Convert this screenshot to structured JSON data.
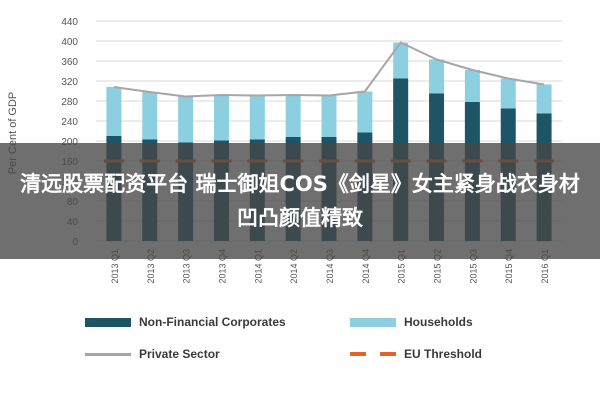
{
  "overlay": {
    "caption": "清远股票配资平台 瑞士御姐COS《剑星》女主紧身战衣身材凹凸颜值精致"
  },
  "chart_data": {
    "type": "bar",
    "ylabel": "Per Cent of GDP",
    "ylim": [
      0,
      440
    ],
    "yticks": [
      0,
      40,
      80,
      120,
      160,
      200,
      240,
      280,
      320,
      360,
      400,
      440
    ],
    "grid": true,
    "legend_position": "bottom",
    "categories": [
      "2013 Q1",
      "2013 Q2",
      "2013 Q3",
      "2013 Q4",
      "2014 Q1",
      "2014 Q2",
      "2014 Q3",
      "2014 Q4",
      "2015 Q1",
      "2015 Q2",
      "2015 Q3",
      "2015 Q4",
      "2016 Q1"
    ],
    "series": [
      {
        "name": "Non-Financial Corporates",
        "kind": "bar",
        "color": "#1e5566",
        "values": [
          210,
          203,
          197,
          201,
          203,
          208,
          208,
          217,
          325,
          295,
          278,
          265,
          255
        ]
      },
      {
        "name": "Households",
        "kind": "bar",
        "color": "#8ccfe0",
        "values": [
          98,
          95,
          92,
          91,
          88,
          84,
          83,
          82,
          72,
          68,
          64,
          60,
          58
        ]
      },
      {
        "name": "Private Sector",
        "kind": "line",
        "color": "#a6a6a6",
        "values": [
          308,
          298,
          289,
          292,
          291,
          292,
          291,
          299,
          397,
          363,
          342,
          325,
          313
        ]
      },
      {
        "name": "EU Threshold",
        "kind": "dashed",
        "color": "#e2632a",
        "values": [
          160,
          160,
          160,
          160,
          160,
          160,
          160,
          160,
          160,
          160,
          160,
          160,
          160
        ]
      }
    ]
  }
}
